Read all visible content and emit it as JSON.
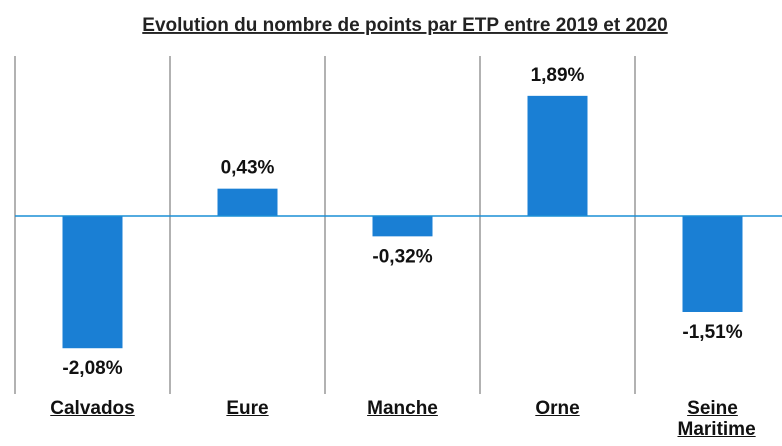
{
  "chart_data": {
    "type": "bar",
    "title": "Evolution du nombre de points par ETP entre 2019 et 2020",
    "categories": [
      "Calvados",
      "Eure",
      "Manche",
      "Orne",
      "Seine Maritime"
    ],
    "values": [
      -2.08,
      0.43,
      -0.32,
      1.89,
      -1.51
    ],
    "value_labels": [
      "-2,08%",
      "0,43%",
      "-0,32%",
      "1,89%",
      "-1,51%"
    ],
    "color": "#1a7fd4",
    "ylim": [
      -2.8,
      2.8
    ]
  }
}
